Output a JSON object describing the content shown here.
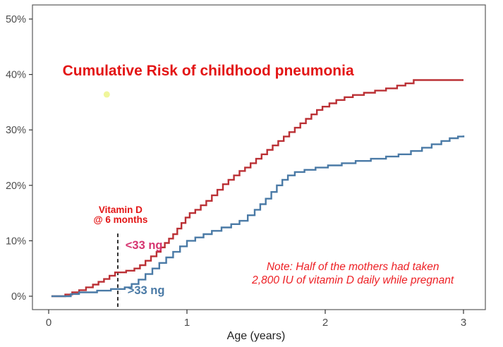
{
  "chart_data": {
    "type": "line",
    "subtype": "step-cumulative-incidence",
    "title": "Cumulative Risk of childhood pneumonia",
    "xlabel": "Age (years)",
    "ylabel": "",
    "xlim": [
      0,
      3.07
    ],
    "ylim": [
      0,
      50
    ],
    "grid": false,
    "legend_position": "inline-curve-labels",
    "colors": {
      "title_red": "#e31515",
      "note_red": "#ed1f24",
      "curve_lt33": "#bb3035",
      "curve_gt33": "#4a7aa6",
      "label_lt33": "#d63570",
      "label_gt33": "#4a7aa6",
      "axis_text": "#4d4d4d",
      "panel_border": "#59595b",
      "dashed_line": "#1a1a1a",
      "highlight_dot": "#edf58a"
    },
    "yticks": [
      {
        "v": 0,
        "label": "0%"
      },
      {
        "v": 10,
        "label": "10%"
      },
      {
        "v": 20,
        "label": "20%"
      },
      {
        "v": 30,
        "label": "30%"
      },
      {
        "v": 40,
        "label": "40%"
      },
      {
        "v": 50,
        "label": "50%"
      }
    ],
    "xticks": [
      {
        "v": 0,
        "label": "0"
      },
      {
        "v": 1,
        "label": "1"
      },
      {
        "v": 2,
        "label": "2"
      },
      {
        "v": 3,
        "label": "3"
      }
    ],
    "series": [
      {
        "name": "<33 ng",
        "color": "#bb3035",
        "points": [
          [
            0.02,
            0
          ],
          [
            0.12,
            0.3
          ],
          [
            0.17,
            0.7
          ],
          [
            0.22,
            1.1
          ],
          [
            0.27,
            1.6
          ],
          [
            0.32,
            2.1
          ],
          [
            0.36,
            2.6
          ],
          [
            0.4,
            3.1
          ],
          [
            0.44,
            3.7
          ],
          [
            0.48,
            4.3
          ],
          [
            0.56,
            4.6
          ],
          [
            0.62,
            5.0
          ],
          [
            0.66,
            5.6
          ],
          [
            0.7,
            6.4
          ],
          [
            0.74,
            7.2
          ],
          [
            0.78,
            8.0
          ],
          [
            0.81,
            8.8
          ],
          [
            0.84,
            9.6
          ],
          [
            0.87,
            10.4
          ],
          [
            0.9,
            11.2
          ],
          [
            0.93,
            12.2
          ],
          [
            0.96,
            13.2
          ],
          [
            0.99,
            14.2
          ],
          [
            1.02,
            15.0
          ],
          [
            1.06,
            15.6
          ],
          [
            1.1,
            16.4
          ],
          [
            1.14,
            17.2
          ],
          [
            1.18,
            18.2
          ],
          [
            1.22,
            19.2
          ],
          [
            1.26,
            20.2
          ],
          [
            1.3,
            21.0
          ],
          [
            1.34,
            21.8
          ],
          [
            1.38,
            22.6
          ],
          [
            1.42,
            23.2
          ],
          [
            1.46,
            24.0
          ],
          [
            1.5,
            24.8
          ],
          [
            1.54,
            25.6
          ],
          [
            1.58,
            26.4
          ],
          [
            1.62,
            27.2
          ],
          [
            1.66,
            28.0
          ],
          [
            1.7,
            28.8
          ],
          [
            1.74,
            29.6
          ],
          [
            1.78,
            30.4
          ],
          [
            1.82,
            31.2
          ],
          [
            1.86,
            32.0
          ],
          [
            1.9,
            32.8
          ],
          [
            1.94,
            33.6
          ],
          [
            1.98,
            34.2
          ],
          [
            2.03,
            34.8
          ],
          [
            2.08,
            35.4
          ],
          [
            2.14,
            35.9
          ],
          [
            2.2,
            36.3
          ],
          [
            2.28,
            36.7
          ],
          [
            2.36,
            37.1
          ],
          [
            2.44,
            37.5
          ],
          [
            2.52,
            38.0
          ],
          [
            2.58,
            38.4
          ],
          [
            2.64,
            39.0
          ],
          [
            3.0,
            39.0
          ]
        ]
      },
      {
        "name": ">33 ng",
        "color": "#4a7aa6",
        "points": [
          [
            0.02,
            0
          ],
          [
            0.16,
            0.4
          ],
          [
            0.22,
            0.7
          ],
          [
            0.35,
            1.0
          ],
          [
            0.45,
            1.3
          ],
          [
            0.55,
            1.6
          ],
          [
            0.6,
            2.2
          ],
          [
            0.65,
            3.0
          ],
          [
            0.7,
            4.0
          ],
          [
            0.75,
            5.0
          ],
          [
            0.8,
            6.0
          ],
          [
            0.85,
            7.0
          ],
          [
            0.9,
            8.0
          ],
          [
            0.95,
            9.0
          ],
          [
            1.0,
            10.0
          ],
          [
            1.06,
            10.6
          ],
          [
            1.12,
            11.2
          ],
          [
            1.18,
            11.8
          ],
          [
            1.25,
            12.4
          ],
          [
            1.32,
            13.0
          ],
          [
            1.38,
            13.6
          ],
          [
            1.44,
            14.6
          ],
          [
            1.49,
            15.6
          ],
          [
            1.53,
            16.6
          ],
          [
            1.57,
            17.6
          ],
          [
            1.61,
            18.8
          ],
          [
            1.65,
            20.0
          ],
          [
            1.69,
            21.0
          ],
          [
            1.73,
            21.8
          ],
          [
            1.78,
            22.4
          ],
          [
            1.85,
            22.8
          ],
          [
            1.93,
            23.2
          ],
          [
            2.02,
            23.6
          ],
          [
            2.12,
            24.0
          ],
          [
            2.22,
            24.4
          ],
          [
            2.33,
            24.8
          ],
          [
            2.44,
            25.2
          ],
          [
            2.53,
            25.6
          ],
          [
            2.62,
            26.2
          ],
          [
            2.7,
            26.8
          ],
          [
            2.77,
            27.4
          ],
          [
            2.84,
            28.0
          ],
          [
            2.9,
            28.5
          ],
          [
            2.96,
            28.8
          ],
          [
            3.0,
            29.0
          ]
        ]
      }
    ],
    "vline": {
      "x": 0.5,
      "y_top": 11.3,
      "y_bottom": -2.3,
      "style": "dashed",
      "color": "#1a1a1a"
    },
    "marker_dot": {
      "x": 0.42,
      "y": 36.4,
      "radius": 4.5,
      "color": "#edf58a",
      "opacity": 0.85
    },
    "annotations": [
      {
        "id": "title",
        "text": "Cumulative Risk of childhood pneumonia",
        "x": 0.1,
        "y": 39.8,
        "anchor": "start",
        "color": "#e31515",
        "size": 21,
        "weight": "bold",
        "style": "normal"
      },
      {
        "id": "vitamin-line1",
        "text": "Vitamin D",
        "x": 0.52,
        "y": 15.1,
        "anchor": "middle",
        "color": "#e31515",
        "size": 13.5,
        "weight": "bold",
        "style": "normal"
      },
      {
        "id": "vitamin-line2",
        "text": "@ 6 months",
        "x": 0.52,
        "y": 13.2,
        "anchor": "middle",
        "color": "#e31515",
        "size": 13.5,
        "weight": "bold",
        "style": "normal"
      },
      {
        "id": "label-lt33",
        "text": "<33 ng",
        "x": 0.555,
        "y": 8.5,
        "anchor": "start",
        "color": "#d63570",
        "size": 16.5,
        "weight": "bold",
        "style": "normal"
      },
      {
        "id": "label-gt33",
        "text": ">33 ng",
        "x": 0.57,
        "y": 0.4,
        "anchor": "start",
        "color": "#4a7aa6",
        "size": 16.5,
        "weight": "bold",
        "style": "normal"
      },
      {
        "id": "note-line1",
        "text": "Note: Half of the mothers had taken",
        "x": 2.2,
        "y": 4.7,
        "anchor": "middle",
        "color": "#ed1f24",
        "size": 15.5,
        "weight": "normal",
        "style": "italic"
      },
      {
        "id": "note-line2",
        "text": "2,800 IU of vitamin D daily while pregnant",
        "x": 2.2,
        "y": 2.2,
        "anchor": "middle",
        "color": "#ed1f24",
        "size": 15.5,
        "weight": "normal",
        "style": "italic"
      }
    ]
  }
}
